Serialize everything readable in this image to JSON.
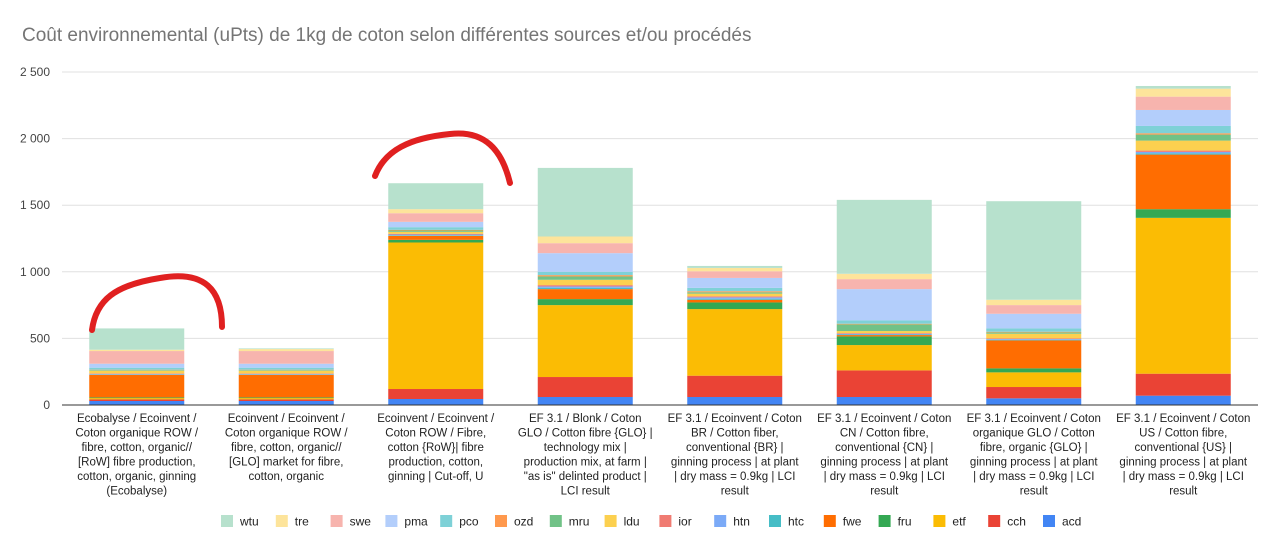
{
  "chart_data": {
    "type": "bar",
    "stacked": true,
    "title": "Coût environnemental (uPts) de 1kg de coton selon différentes sources et/ou procédés",
    "xlabel": "",
    "ylabel": "",
    "ylim": [
      0,
      2500
    ],
    "yticks": [
      0,
      500,
      1000,
      1500,
      2000,
      2500
    ],
    "ytick_labels": [
      "0",
      "500",
      "1 000",
      "1 500",
      "2 000",
      "2 500"
    ],
    "grid": true,
    "legend_position": "bottom",
    "categories": [
      [
        "Ecobalyse / Ecoinvent /",
        "Coton organique ROW /",
        "fibre, cotton, organic//",
        "[RoW] fibre production,",
        "cotton, organic, ginning",
        "(Ecobalyse)"
      ],
      [
        "Ecoinvent / Ecoinvent /",
        "Coton organique ROW /",
        "fibre, cotton, organic//",
        "[GLO] market for fibre,",
        "cotton, organic"
      ],
      [
        "Ecoinvent / Ecoinvent /",
        "Coton ROW / Fibre,",
        "cotton {RoW}| fibre",
        "production, cotton,",
        "ginning | Cut-off, U"
      ],
      [
        "EF 3.1 / Blonk / Coton",
        "GLO / Cotton fibre {GLO} |",
        "technology mix |",
        "production mix, at farm |",
        "\"as is\" delinted product |",
        "LCI result"
      ],
      [
        "EF 3.1 / Ecoinvent / Coton",
        "BR / Cotton fiber,",
        "conventional {BR} |",
        "ginning process | at plant",
        "| dry mass = 0.9kg | LCI",
        "result"
      ],
      [
        "EF 3.1 / Ecoinvent / Coton",
        "CN / Cotton fibre,",
        "conventional {CN} |",
        "ginning process | at plant",
        "| dry mass = 0.9kg | LCI",
        "result"
      ],
      [
        "EF 3.1 / Ecoinvent / Coton",
        "organique GLO / Cotton",
        "fibre, organic {GLO} |",
        "ginning process | at plant",
        "| dry mass = 0.9kg | LCI",
        "result"
      ],
      [
        "EF 3.1 / Ecoinvent / Coton",
        "US / Cotton fibre,",
        "conventional {US} |",
        "ginning process | at plant",
        "| dry mass = 0.9kg | LCI",
        "result"
      ]
    ],
    "series": [
      {
        "name": "acd",
        "color": "#4285f4",
        "values": [
          30,
          30,
          45,
          60,
          60,
          60,
          50,
          70
        ]
      },
      {
        "name": "cch",
        "color": "#ea4335",
        "values": [
          12,
          12,
          75,
          150,
          160,
          200,
          85,
          165
        ]
      },
      {
        "name": "etf",
        "color": "#fbbc04",
        "values": [
          10,
          10,
          1100,
          540,
          500,
          190,
          110,
          1170
        ]
      },
      {
        "name": "fru",
        "color": "#34a853",
        "values": [
          5,
          5,
          20,
          45,
          50,
          65,
          30,
          65
        ]
      },
      {
        "name": "fwe",
        "color": "#ff6d01",
        "values": [
          170,
          170,
          30,
          75,
          20,
          10,
          210,
          410
        ]
      },
      {
        "name": "htc",
        "color": "#46bdc6",
        "values": [
          3,
          3,
          5,
          10,
          8,
          5,
          5,
          10
        ]
      },
      {
        "name": "htn",
        "color": "#7baaf7",
        "values": [
          4,
          4,
          5,
          10,
          10,
          5,
          5,
          10
        ]
      },
      {
        "name": "ior",
        "color": "#f07b72",
        "values": [
          3,
          3,
          5,
          10,
          8,
          5,
          5,
          10
        ]
      },
      {
        "name": "ldu",
        "color": "#fcd04f",
        "values": [
          20,
          20,
          15,
          40,
          20,
          15,
          35,
          75
        ]
      },
      {
        "name": "mru",
        "color": "#71c287",
        "values": [
          5,
          5,
          10,
          25,
          10,
          50,
          10,
          45
        ]
      },
      {
        "name": "ozd",
        "color": "#ff994d",
        "values": [
          3,
          3,
          5,
          10,
          8,
          5,
          5,
          10
        ]
      },
      {
        "name": "pco",
        "color": "#7ed1d7",
        "values": [
          15,
          15,
          20,
          25,
          25,
          25,
          25,
          55
        ]
      },
      {
        "name": "pma",
        "color": "#b3cefb",
        "values": [
          30,
          30,
          40,
          140,
          75,
          235,
          110,
          120
        ]
      },
      {
        "name": "swe",
        "color": "#f7b4ae",
        "values": [
          95,
          95,
          65,
          75,
          50,
          75,
          65,
          100
        ]
      },
      {
        "name": "tre",
        "color": "#fde49b",
        "values": [
          10,
          15,
          30,
          50,
          25,
          40,
          40,
          60
        ]
      },
      {
        "name": "wtu",
        "color": "#b7e1cd",
        "values": [
          160,
          5,
          195,
          515,
          15,
          555,
          740,
          20
        ]
      }
    ],
    "legend_order": [
      "wtu",
      "tre",
      "swe",
      "pma",
      "pco",
      "ozd",
      "mru",
      "ldu",
      "ior",
      "htn",
      "htc",
      "fwe",
      "fru",
      "etf",
      "cch",
      "acd"
    ]
  }
}
